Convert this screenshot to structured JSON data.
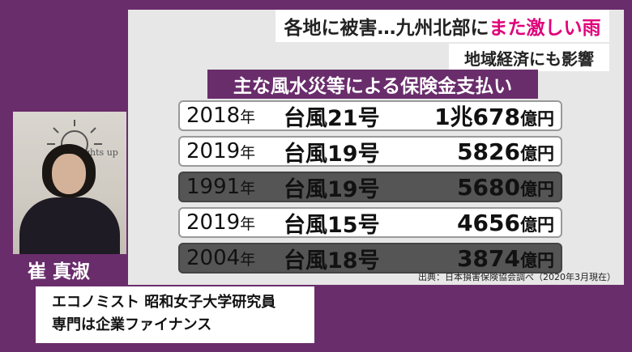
{
  "headline": {
    "main": "各地に被害…九州北部に",
    "accent": "また激しい雨",
    "accent_color": "#e0007a"
  },
  "subhead": "地域経済にも影響",
  "table": {
    "title": "主な風水災等による保険金支払い",
    "rows": [
      {
        "year": "2018",
        "year_unit": "年",
        "typhoon": "台風21号",
        "amount": "1兆678",
        "amount_unit": "億円",
        "style": "light"
      },
      {
        "year": "2019",
        "year_unit": "年",
        "typhoon": "台風19号",
        "amount": "5826",
        "amount_unit": "億円",
        "style": "light"
      },
      {
        "year": "1991",
        "year_unit": "年",
        "typhoon": "台風19号",
        "amount": "5680",
        "amount_unit": "億円",
        "style": "dark"
      },
      {
        "year": "2019",
        "year_unit": "年",
        "typhoon": "台風15号",
        "amount": "4656",
        "amount_unit": "億円",
        "style": "light"
      },
      {
        "year": "2004",
        "year_unit": "年",
        "typhoon": "台風18号",
        "amount": "3874",
        "amount_unit": "億円",
        "style": "dark"
      }
    ],
    "source": "出典：日本損害保険協会調べ（2020年3月現在）"
  },
  "video": {
    "logo_text": "ghts up"
  },
  "guest": {
    "name": "崔 真淑",
    "title_line1": "エコノミスト 昭和女子大学研究員",
    "title_line2": "専門は企業ファイナンス"
  },
  "colors": {
    "brand_purple": "#6a2d6c",
    "panel_gray": "#e7e7e7",
    "row_dark": "#555555"
  }
}
